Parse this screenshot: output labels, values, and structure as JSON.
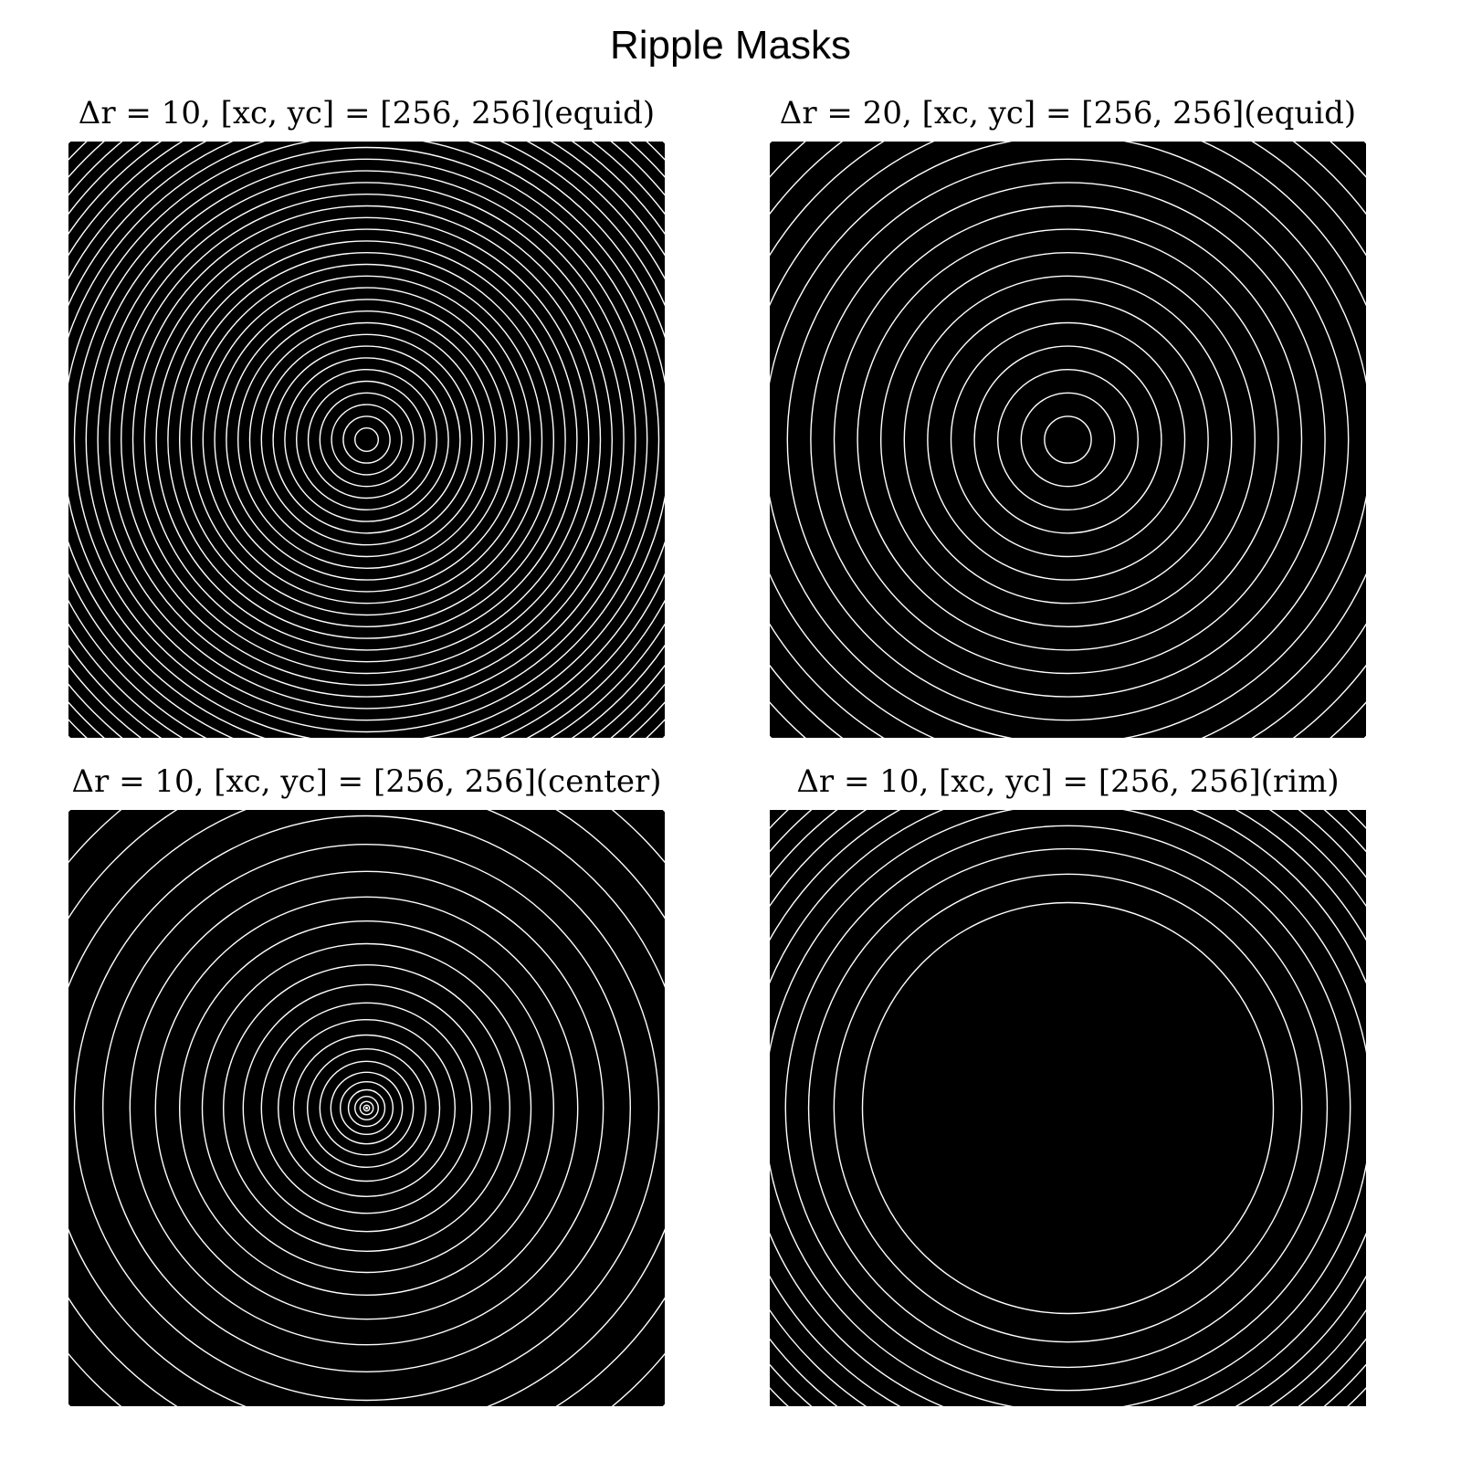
{
  "title": "Ripple Masks",
  "panels": [
    {
      "title": "Δr = 10, [xc, yc] = [256, 256](equid)"
    },
    {
      "title": "Δr = 20, [xc, yc] = [256, 256](equid)"
    },
    {
      "title": "Δr = 10, [xc, yc] = [256, 256](center)"
    },
    {
      "title": "Δr = 10, [xc, yc] = [256, 256](rim)"
    }
  ]
}
